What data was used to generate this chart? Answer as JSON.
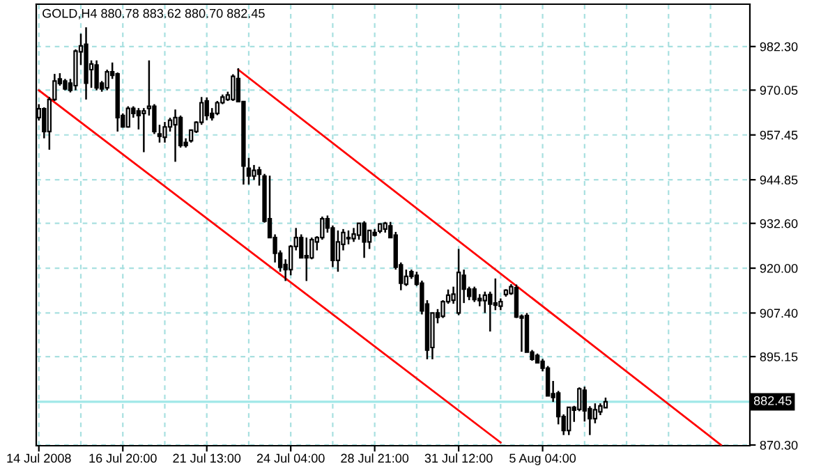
{
  "chart_data": {
    "type": "candlestick",
    "title": "GOLD,H4 880.78 883.62 880.70 882.45",
    "categories": [
      "14 Jul 2008",
      null,
      null,
      null,
      null,
      null,
      null,
      null,
      null,
      null,
      null,
      null,
      null,
      null,
      null,
      null,
      "16 Jul 20:00",
      null,
      null,
      null,
      null,
      null,
      null,
      null,
      null,
      null,
      null,
      null,
      null,
      null,
      null,
      null,
      "21 Jul 13:00",
      null,
      null,
      null,
      null,
      null,
      null,
      null,
      null,
      null,
      null,
      null,
      null,
      null,
      null,
      null,
      "24 Jul 04:00",
      null,
      null,
      null,
      null,
      null,
      null,
      null,
      null,
      null,
      null,
      null,
      null,
      null,
      null,
      null,
      "28 Jul 21:00",
      null,
      null,
      null,
      null,
      null,
      null,
      null,
      null,
      null,
      null,
      null,
      null,
      null,
      null,
      null,
      "31 Jul 12:00",
      null,
      null,
      null,
      null,
      null,
      null,
      null,
      null,
      null,
      null,
      null,
      null,
      null,
      null,
      null,
      "5 Aug 04:00",
      null,
      null,
      null,
      null,
      null,
      null,
      null,
      null,
      null,
      null,
      null,
      null,
      null,
      null,
      null,
      null,
      null,
      null,
      null,
      null,
      null,
      null,
      null,
      null,
      null,
      null,
      null,
      null,
      null,
      null,
      null,
      null,
      null,
      null,
      null,
      null,
      null,
      null,
      null
    ],
    "ohlc": [
      [
        962.3,
        966.1,
        961.5,
        964.8
      ],
      [
        964.8,
        965.2,
        956.5,
        958.4
      ],
      [
        958.4,
        968.1,
        953.3,
        967.4
      ],
      [
        967.4,
        974.6,
        967.0,
        972.6
      ],
      [
        973.2,
        974.8,
        971.3,
        971.9
      ],
      [
        972.6,
        973.2,
        970.0,
        970.4
      ],
      [
        972.0,
        973.2,
        969.4,
        970.0
      ],
      [
        971.3,
        981.5,
        970.0,
        981.0
      ],
      [
        980.8,
        985.9,
        977.1,
        982.5
      ],
      [
        982.9,
        987.7,
        967.4,
        972.0
      ],
      [
        975.8,
        978.4,
        970.7,
        977.4
      ],
      [
        977.1,
        978.4,
        970.0,
        970.7
      ],
      [
        972.0,
        972.6,
        969.6,
        970.4
      ],
      [
        970.7,
        975.8,
        970.0,
        975.2
      ],
      [
        975.2,
        977.8,
        973.2,
        974.2
      ],
      [
        974.6,
        975.0,
        958.4,
        962.3
      ],
      [
        962.9,
        963.5,
        959.5,
        959.7
      ],
      [
        959.7,
        965.5,
        959.5,
        964.9
      ],
      [
        964.9,
        965.5,
        962.3,
        963.5
      ],
      [
        964.2,
        965.0,
        959.0,
        962.9
      ],
      [
        963.5,
        965.0,
        952.6,
        964.2
      ],
      [
        964.9,
        978.4,
        962.9,
        965.5
      ],
      [
        965.5,
        966.1,
        957.7,
        958.4
      ],
      [
        957.7,
        960.3,
        955.3,
        957.1
      ],
      [
        956.8,
        961.1,
        955.3,
        959.7
      ],
      [
        959.7,
        962.3,
        958.4,
        961.6
      ],
      [
        960.3,
        964.6,
        949.9,
        962.3
      ],
      [
        962.3,
        962.9,
        953.9,
        954.5
      ],
      [
        955.3,
        956.5,
        953.9,
        954.5
      ],
      [
        955.8,
        959.0,
        955.3,
        958.8
      ],
      [
        958.4,
        961.3,
        958.0,
        961.0
      ],
      [
        961.0,
        968.1,
        960.3,
        966.5
      ],
      [
        967.0,
        968.0,
        961.6,
        962.9
      ],
      [
        963.5,
        965.0,
        961.5,
        962.3
      ],
      [
        963.5,
        967.0,
        963.0,
        966.5
      ],
      [
        966.5,
        968.8,
        966.1,
        968.1
      ],
      [
        967.4,
        969.6,
        967.0,
        968.7
      ],
      [
        967.4,
        974.5,
        967.0,
        973.9
      ],
      [
        973.3,
        976.2,
        966.8,
        966.8
      ],
      [
        966.8,
        967.0,
        943.5,
        948.7
      ],
      [
        948.1,
        951.0,
        943.5,
        945.9
      ],
      [
        945.9,
        949.0,
        944.8,
        947.5
      ],
      [
        947.6,
        948.5,
        943.2,
        946.4
      ],
      [
        945.9,
        946.5,
        932.8,
        933.2
      ],
      [
        933.9,
        946.0,
        928.6,
        928.6
      ],
      [
        928.6,
        929.5,
        921.6,
        924.2
      ],
      [
        924.2,
        925.0,
        919.0,
        920.3
      ],
      [
        921.0,
        922.5,
        916.4,
        919.6
      ],
      [
        919.6,
        926.5,
        918.0,
        926.1
      ],
      [
        926.1,
        931.3,
        925.0,
        928.6
      ],
      [
        928.6,
        929.5,
        922.9,
        922.9
      ],
      [
        923.5,
        928.6,
        916.4,
        922.9
      ],
      [
        922.9,
        928.6,
        922.5,
        928.0
      ],
      [
        927.4,
        929.0,
        925.0,
        928.6
      ],
      [
        928.6,
        934.5,
        928.0,
        933.9
      ],
      [
        933.9,
        934.8,
        930.0,
        931.3
      ],
      [
        931.3,
        932.0,
        920.3,
        922.2
      ],
      [
        922.2,
        930.6,
        919.0,
        927.4
      ],
      [
        926.7,
        931.0,
        925.0,
        930.0
      ],
      [
        928.3,
        930.6,
        926.7,
        928.6
      ],
      [
        928.3,
        931.3,
        927.4,
        929.6
      ],
      [
        929.3,
        932.6,
        928.0,
        932.6
      ],
      [
        932.6,
        933.2,
        922.9,
        927.4
      ],
      [
        927.4,
        930.6,
        925.4,
        930.6
      ],
      [
        930.0,
        931.0,
        928.9,
        929.3
      ],
      [
        930.4,
        932.6,
        929.8,
        932.4
      ],
      [
        931.0,
        933.0,
        930.0,
        932.6
      ],
      [
        931.9,
        933.0,
        928.6,
        928.6
      ],
      [
        929.3,
        930.2,
        919.6,
        920.3
      ],
      [
        920.9,
        921.6,
        913.8,
        915.8
      ],
      [
        915.5,
        919.6,
        915.0,
        917.7
      ],
      [
        919.0,
        919.6,
        917.0,
        917.7
      ],
      [
        918.0,
        919.0,
        915.0,
        915.5
      ],
      [
        915.8,
        916.5,
        907.0,
        908.0
      ],
      [
        909.9,
        911.0,
        894.4,
        897.0
      ],
      [
        897.7,
        907.4,
        894.4,
        907.4
      ],
      [
        907.4,
        908.5,
        904.5,
        906.2
      ],
      [
        906.5,
        911.0,
        906.0,
        910.6
      ],
      [
        910.6,
        914.0,
        910.0,
        912.4
      ],
      [
        911.0,
        914.8,
        910.0,
        912.7
      ],
      [
        907.4,
        925.4,
        906.8,
        918.8
      ],
      [
        918.0,
        919.6,
        910.2,
        914.1
      ],
      [
        914.1,
        914.8,
        911.0,
        912.1
      ],
      [
        914.1,
        914.8,
        910.5,
        911.2
      ],
      [
        911.5,
        912.7,
        909.3,
        910.9
      ],
      [
        910.9,
        913.4,
        907.4,
        912.4
      ],
      [
        912.6,
        913.4,
        902.2,
        909.9
      ],
      [
        910.2,
        917.1,
        908.2,
        909.6
      ],
      [
        909.3,
        911.5,
        908.2,
        910.6
      ],
      [
        912.6,
        914.1,
        912.0,
        913.8
      ],
      [
        912.9,
        915.5,
        912.5,
        914.8
      ],
      [
        914.5,
        915.4,
        906.0,
        906.3
      ],
      [
        906.5,
        907.0,
        896.5,
        906.0
      ],
      [
        906.7,
        907.4,
        896.4,
        896.4
      ],
      [
        896.4,
        897.0,
        894.0,
        894.4
      ],
      [
        895.5,
        896.0,
        893.2,
        893.4
      ],
      [
        893.8,
        894.5,
        891.0,
        891.9
      ],
      [
        891.9,
        892.5,
        884.1,
        884.1
      ],
      [
        884.7,
        888.3,
        882.4,
        883.7
      ],
      [
        884.9,
        885.5,
        876.1,
        878.3
      ],
      [
        878.3,
        878.9,
        873.1,
        874.4
      ],
      [
        874.4,
        881.0,
        873.1,
        880.9
      ],
      [
        880.9,
        881.3,
        876.8,
        880.1
      ],
      [
        880.3,
        886.5,
        879.8,
        886.1
      ],
      [
        885.7,
        886.7,
        876.9,
        879.9
      ],
      [
        880.5,
        881.2,
        873.1,
        877.7
      ],
      [
        877.7,
        882.0,
        876.4,
        880.2
      ],
      [
        879.6,
        882.0,
        878.7,
        881.3
      ],
      [
        880.78,
        883.62,
        880.7,
        882.45
      ],
      null,
      null,
      null,
      null,
      null,
      null,
      null,
      null,
      null,
      null,
      null,
      null,
      null,
      null,
      null,
      null,
      null,
      null,
      null,
      null,
      null,
      null,
      null,
      null,
      null,
      null,
      null
    ],
    "series": [
      {
        "type": "line",
        "color": "#ff0000",
        "values": [
          null,
          null,
          null,
          null,
          null,
          null,
          null,
          null,
          null,
          null,
          null,
          null,
          null,
          null,
          null,
          null,
          null,
          null,
          null,
          null,
          null,
          null,
          null,
          null,
          null,
          null,
          null,
          null,
          null,
          null,
          null,
          null,
          null,
          null,
          null,
          null,
          null,
          null,
          975.8,
          null,
          null,
          null,
          null,
          null,
          null,
          null,
          null,
          null,
          null,
          null,
          null,
          null,
          null,
          null,
          null,
          null,
          null,
          null,
          null,
          null,
          null,
          null,
          null,
          null,
          null,
          null,
          null,
          null,
          null,
          null,
          null,
          null,
          null,
          null,
          null,
          null,
          null,
          null,
          null,
          null,
          null,
          null,
          null,
          null,
          null,
          null,
          null,
          null,
          null,
          null,
          null,
          null,
          null,
          null,
          null,
          null,
          null,
          null,
          null,
          null,
          null,
          null,
          null,
          null,
          null,
          null,
          null,
          null,
          null,
          null,
          null,
          null,
          null,
          null,
          null,
          null,
          null,
          null,
          null,
          null,
          null,
          null,
          null,
          null,
          null,
          null,
          null,
          null,
          null,
          null,
          870.3,
          null,
          null,
          null,
          null,
          null
        ]
      },
      {
        "type": "line",
        "color": "#ff0000",
        "values": [
          970.0,
          null,
          null,
          null,
          null,
          null,
          null,
          null,
          null,
          null,
          null,
          null,
          null,
          null,
          null,
          null,
          null,
          null,
          null,
          null,
          null,
          null,
          null,
          null,
          null,
          null,
          null,
          null,
          null,
          null,
          null,
          null,
          null,
          null,
          null,
          null,
          null,
          null,
          null,
          null,
          null,
          null,
          null,
          null,
          null,
          null,
          null,
          null,
          null,
          null,
          null,
          null,
          null,
          null,
          null,
          null,
          null,
          null,
          null,
          null,
          null,
          null,
          null,
          null,
          null,
          null,
          null,
          null,
          null,
          null,
          null,
          null,
          null,
          null,
          null,
          null,
          null,
          null,
          null,
          null,
          null,
          null,
          null,
          null,
          null,
          null,
          null,
          null,
          871.0,
          null,
          null,
          null,
          null,
          null,
          null,
          null,
          null,
          null,
          null,
          null,
          null,
          null,
          null,
          null,
          null,
          null,
          null,
          null,
          null,
          null,
          null,
          null,
          null,
          null,
          null,
          null,
          null,
          null,
          null,
          null,
          null,
          null,
          null,
          null,
          null,
          null,
          null,
          null,
          null,
          null,
          null,
          null,
          null,
          null,
          null,
          null
        ]
      }
    ],
    "ref_lines": [
      {
        "axis": "y",
        "value": 882.45,
        "label": "882.45",
        "color": "#a0e8e8"
      }
    ],
    "ylim": [
      870.1,
      994.2
    ],
    "yticks": [
      {
        "value": 870.3,
        "label": "870.30"
      },
      {
        "value": 895.15,
        "label": "895.15"
      },
      {
        "value": 907.4,
        "label": "907.40"
      },
      {
        "value": 920,
        "label": "920.00"
      },
      {
        "value": 932.6,
        "label": "932.60"
      },
      {
        "value": 944.85,
        "label": "944.85"
      },
      {
        "value": 957.45,
        "label": "957.45"
      },
      {
        "value": 970.05,
        "label": "970.05"
      },
      {
        "value": 982.3,
        "label": "982.30"
      }
    ],
    "grid": true
  }
}
